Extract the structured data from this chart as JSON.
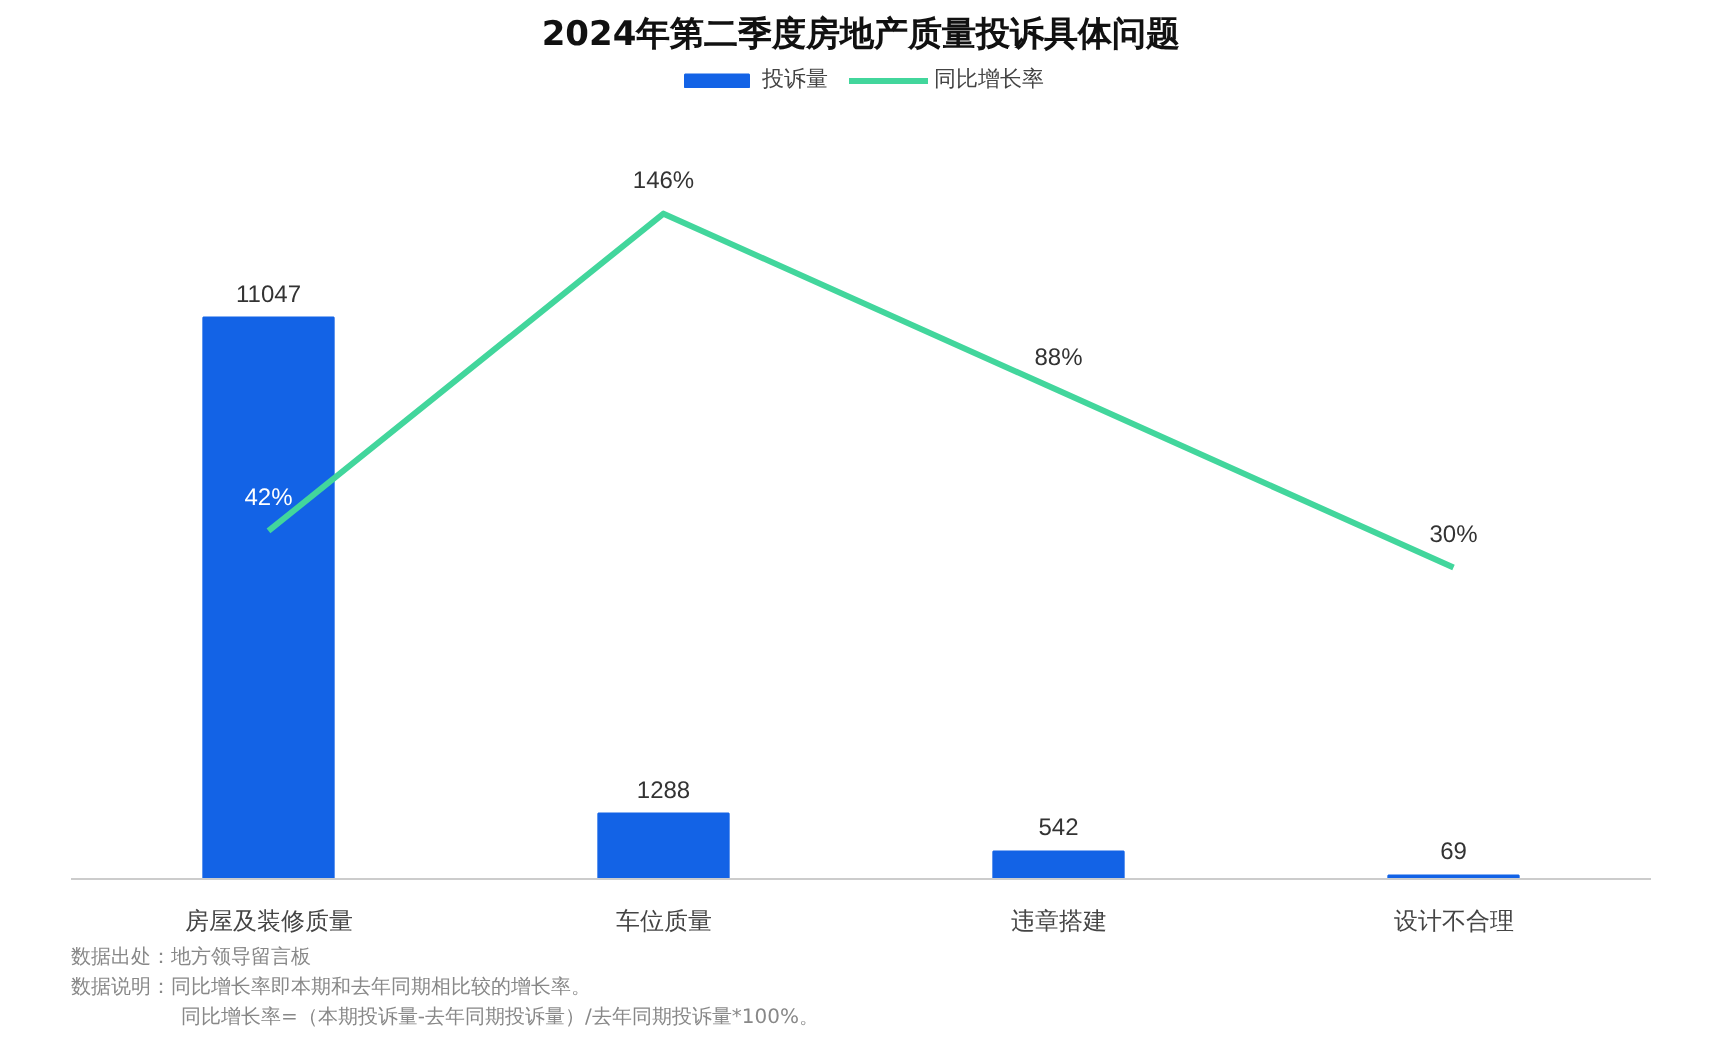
{
  "chart_data": {
    "type": "bar",
    "title": "2024年第二季度房地产质量投诉具体问题",
    "categories": [
      "房屋及装修质量",
      "车位质量",
      "违章搭建",
      "设计不合理"
    ],
    "series": [
      {
        "name": "投诉量",
        "color": "#1363e6",
        "values": [
          11047,
          1288,
          542,
          69
        ],
        "value_labels": [
          "11047",
          "1288",
          "542",
          "69"
        ]
      },
      {
        "name": "同比增长率",
        "type": "line",
        "axis": "y2",
        "color": "#42d69c",
        "values": [
          42,
          146,
          88,
          30
        ],
        "value_labels": [
          "42%",
          "146%",
          "88%",
          "30%"
        ]
      }
    ],
    "tick_labels": "x",
    "grid": false,
    "legend": "top",
    "marker": "none",
    "line_style": "solid",
    "annotations": [
      "数据出处：地方领导留言板",
      "数据说明：同比增长率即本期和去年同期相比较的增长率。",
      "同比增长率=（本期投诉量-去年同期投诉量）/去年同期投诉量*100%。"
    ]
  }
}
